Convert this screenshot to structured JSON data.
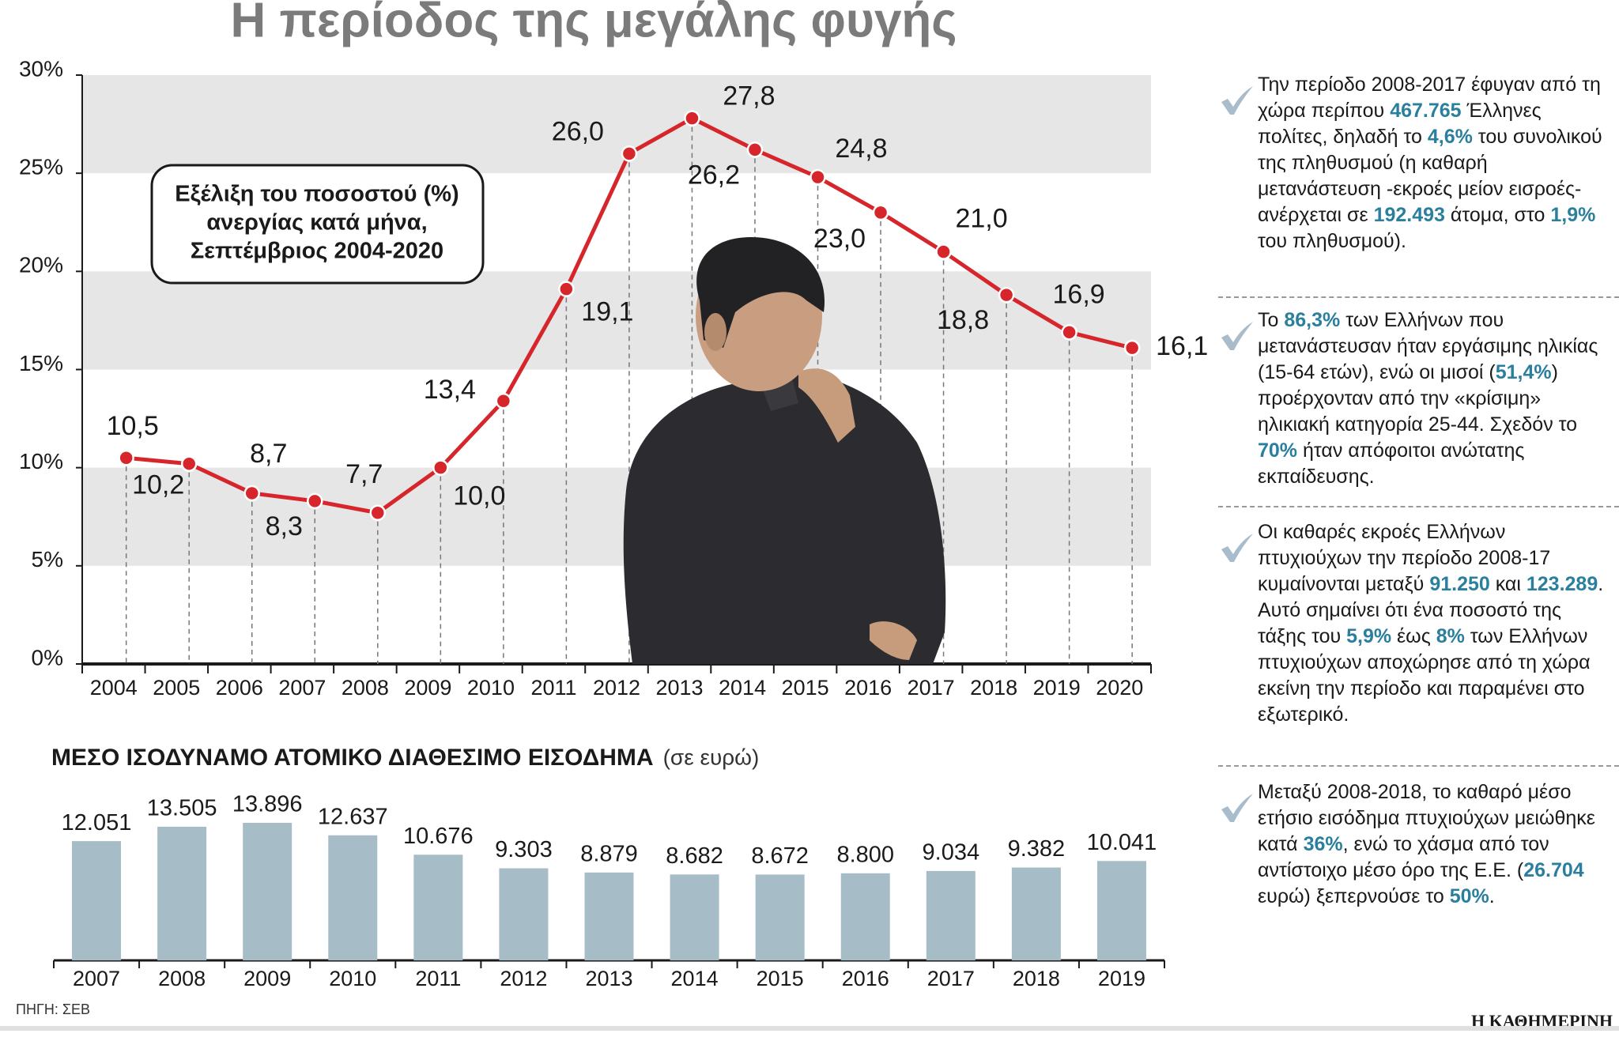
{
  "title": "Η περίοδος της μεγάλης φυγής",
  "chart_data": [
    {
      "type": "line",
      "annotation": [
        "Εξέλιξη του ποσοστού (%)",
        "ανεργίας κατά μήνα,",
        "Σεπτέμβριος 2004-2020"
      ],
      "categories": [
        "2004",
        "2005",
        "2006",
        "2007",
        "2008",
        "2009",
        "2010",
        "2011",
        "2012",
        "2013",
        "2014",
        "2015",
        "2016",
        "2017",
        "2018",
        "2019",
        "2020"
      ],
      "values": [
        10.5,
        10.2,
        8.7,
        8.3,
        7.7,
        10.0,
        13.4,
        19.1,
        26.0,
        27.8,
        26.2,
        24.8,
        23.0,
        21.0,
        18.8,
        16.9,
        16.1
      ],
      "value_labels": [
        "10,5",
        "10,2",
        "8,7",
        "8,3",
        "7,7",
        "10,0",
        "13,4",
        "19,1",
        "26,0",
        "27,8",
        "26,2",
        "24,8",
        "23,0",
        "21,0",
        "18,8",
        "16,9",
        "16,1"
      ],
      "color": "#d7262b",
      "ylim": [
        0,
        30
      ],
      "yticks": [
        {
          "value": 0,
          "label": "0%"
        },
        {
          "value": 5,
          "label": "5%"
        },
        {
          "value": 10,
          "label": "10%"
        },
        {
          "value": 15,
          "label": "15%"
        },
        {
          "value": 20,
          "label": "20%"
        },
        {
          "value": 25,
          "label": "25%"
        },
        {
          "value": 30,
          "label": "30%"
        }
      ],
      "bands": true
    },
    {
      "type": "bar",
      "title": "ΜΕΣΟ ΙΣΟΔΥΝΑΜΟ ΑΤΟΜΙΚΟ ΔΙΑΘΕΣΙΜΟ ΕΙΣΟΔΗΜΑ",
      "subtitle": "(σε ευρώ)",
      "categories": [
        "2007",
        "2008",
        "2009",
        "2010",
        "2011",
        "2012",
        "2013",
        "2014",
        "2015",
        "2016",
        "2017",
        "2018",
        "2019"
      ],
      "values": [
        12051,
        13505,
        13896,
        12637,
        10676,
        9303,
        8879,
        8682,
        8672,
        8800,
        9034,
        9382,
        10041
      ],
      "value_labels": [
        "12.051",
        "13.505",
        "13.896",
        "12.637",
        "10.676",
        "9.303",
        "8.879",
        "8.682",
        "8.672",
        "8.800",
        "9.034",
        "9.382",
        "10.041"
      ],
      "color": "#a6bcc7"
    }
  ],
  "notes": [
    [
      "Την περίοδο 2008-2017 έφυγαν από τη χώρα περίπου ",
      "467.765",
      " Έλληνες πολίτες, δηλαδή το ",
      "4,6%",
      " του συνολικού της πληθυσμού (η καθαρή μετανάστευση -εκροές μείον εισροές- ανέρχεται σε ",
      "192.493",
      " άτομα, στο ",
      "1,9%",
      " του πληθυσμού)."
    ],
    [
      "Το ",
      "86,3%",
      " των Ελλήνων που μετανάστευσαν ήταν εργάσιμης ηλικίας (15-64 ετών), ενώ οι μισοί (",
      "51,4%",
      ") προέρχονταν από την «κρίσιμη» ηλικιακή κατηγορία 25-44. Σχεδόν το ",
      "70%",
      " ήταν απόφοιτοι ανώτατης εκπαίδευσης."
    ],
    [
      "Οι καθαρές εκροές Ελλήνων πτυχιούχων την περίοδο 2008-17 κυμαίνονται μεταξύ ",
      "91.250",
      " και ",
      "123.289",
      ". Αυτό σημαίνει ότι ένα ποσοστό της τάξης του ",
      "5,9%",
      " έως ",
      "8%",
      " των Ελλήνων πτυχιούχων αποχώρησε από τη χώρα εκείνη την περίοδο και παραμένει στο εξωτερικό."
    ],
    [
      "Μεταξύ 2008-2018, το καθαρό μέσο ετήσιο εισόδημα πτυχιούχων μειώθηκε κατά ",
      "36%",
      ", ενώ το χάσμα από τον αντίστοιχο μέσο όρο της Ε.Ε. (",
      "26.704",
      " ευρώ) ξεπερνούσε το ",
      "50%",
      "."
    ]
  ],
  "source": "ΠΗΓΗ: ΣΕΒ",
  "publisher": "Η ΚΑΘΗΜΕΡΙΝΗ"
}
